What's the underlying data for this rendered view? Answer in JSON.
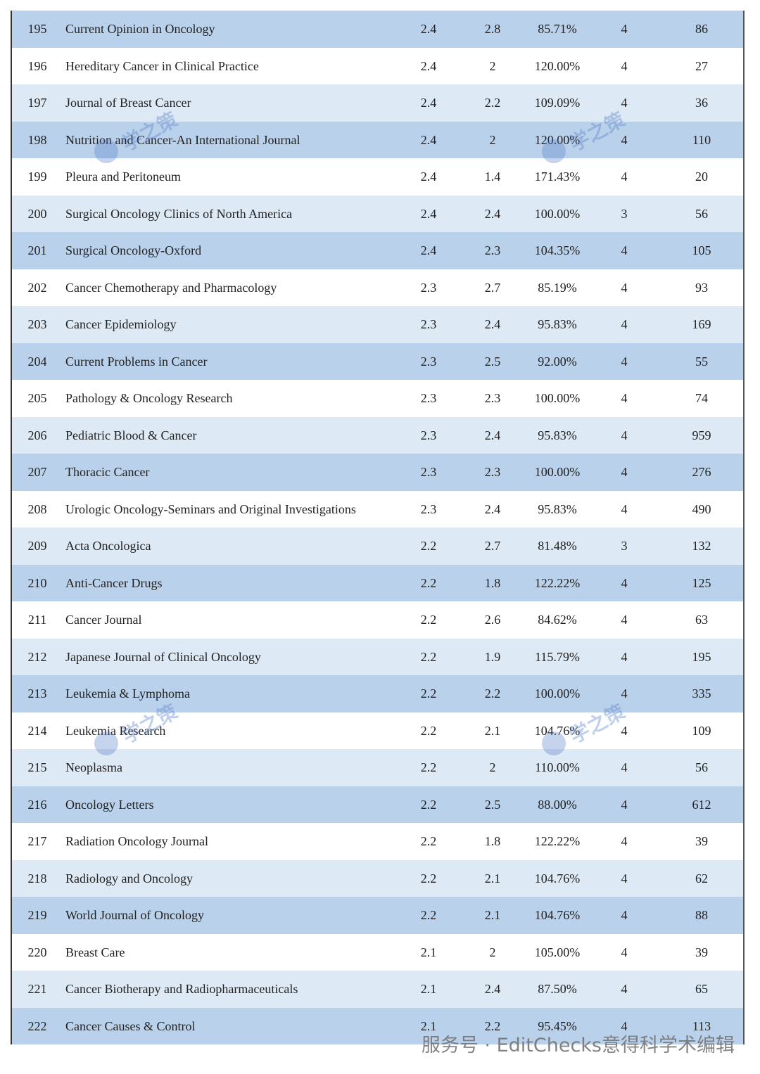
{
  "table": {
    "rows": [
      [
        "195",
        "Current Opinion in Oncology",
        "2.4",
        "2.8",
        "85.71%",
        "4",
        "86"
      ],
      [
        "196",
        "Hereditary Cancer in Clinical Practice",
        "2.4",
        "2",
        "120.00%",
        "4",
        "27"
      ],
      [
        "197",
        "Journal of Breast Cancer",
        "2.4",
        "2.2",
        "109.09%",
        "4",
        "36"
      ],
      [
        "198",
        "Nutrition and Cancer-An International Journal",
        "2.4",
        "2",
        "120.00%",
        "4",
        "110"
      ],
      [
        "199",
        "Pleura and Peritoneum",
        "2.4",
        "1.4",
        "171.43%",
        "4",
        "20"
      ],
      [
        "200",
        "Surgical Oncology Clinics of North America",
        "2.4",
        "2.4",
        "100.00%",
        "3",
        "56"
      ],
      [
        "201",
        "Surgical Oncology-Oxford",
        "2.4",
        "2.3",
        "104.35%",
        "4",
        "105"
      ],
      [
        "202",
        "Cancer Chemotherapy and Pharmacology",
        "2.3",
        "2.7",
        "85.19%",
        "4",
        "93"
      ],
      [
        "203",
        "Cancer Epidemiology",
        "2.3",
        "2.4",
        "95.83%",
        "4",
        "169"
      ],
      [
        "204",
        "Current Problems in Cancer",
        "2.3",
        "2.5",
        "92.00%",
        "4",
        "55"
      ],
      [
        "205",
        "Pathology & Oncology Research",
        "2.3",
        "2.3",
        "100.00%",
        "4",
        "74"
      ],
      [
        "206",
        "Pediatric Blood & Cancer",
        "2.3",
        "2.4",
        "95.83%",
        "4",
        "959"
      ],
      [
        "207",
        "Thoracic Cancer",
        "2.3",
        "2.3",
        "100.00%",
        "4",
        "276"
      ],
      [
        "208",
        "Urologic Oncology-Seminars and Original Investigations",
        "2.3",
        "2.4",
        "95.83%",
        "4",
        "490"
      ],
      [
        "209",
        "Acta Oncologica",
        "2.2",
        "2.7",
        "81.48%",
        "3",
        "132"
      ],
      [
        "210",
        "Anti-Cancer Drugs",
        "2.2",
        "1.8",
        "122.22%",
        "4",
        "125"
      ],
      [
        "211",
        "Cancer Journal",
        "2.2",
        "2.6",
        "84.62%",
        "4",
        "63"
      ],
      [
        "212",
        "Japanese Journal of Clinical Oncology",
        "2.2",
        "1.9",
        "115.79%",
        "4",
        "195"
      ],
      [
        "213",
        "Leukemia & Lymphoma",
        "2.2",
        "2.2",
        "100.00%",
        "4",
        "335"
      ],
      [
        "214",
        "Leukemia Research",
        "2.2",
        "2.1",
        "104.76%",
        "4",
        "109"
      ],
      [
        "215",
        "Neoplasma",
        "2.2",
        "2",
        "110.00%",
        "4",
        "56"
      ],
      [
        "216",
        "Oncology Letters",
        "2.2",
        "2.5",
        "88.00%",
        "4",
        "612"
      ],
      [
        "217",
        "Radiation Oncology Journal",
        "2.2",
        "1.8",
        "122.22%",
        "4",
        "39"
      ],
      [
        "218",
        "Radiology and Oncology",
        "2.2",
        "2.1",
        "104.76%",
        "4",
        "62"
      ],
      [
        "219",
        "World Journal of Oncology",
        "2.2",
        "2.1",
        "104.76%",
        "4",
        "88"
      ],
      [
        "220",
        "Breast Care",
        "2.1",
        "2",
        "105.00%",
        "4",
        "39"
      ],
      [
        "221",
        "Cancer Biotherapy and Radiopharmaceuticals",
        "2.1",
        "2.4",
        "87.50%",
        "4",
        "65"
      ],
      [
        "222",
        "Cancer Causes & Control",
        "2.1",
        "2.2",
        "95.45%",
        "4",
        "113"
      ]
    ]
  },
  "watermark": "学之策",
  "footer": "服务号 · EditChecks意得科学术编辑"
}
